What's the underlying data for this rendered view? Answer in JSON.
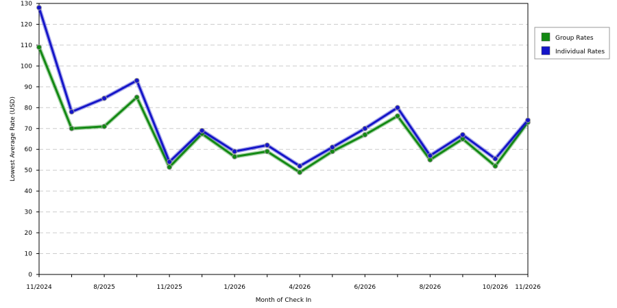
{
  "chart_data": {
    "type": "line",
    "title": "",
    "xlabel": "Month of Check In",
    "ylabel": "Lowest Average Rate (USD)",
    "ylim": [
      0,
      130
    ],
    "y_ticks": [
      0,
      10,
      20,
      30,
      40,
      50,
      60,
      70,
      80,
      90,
      100,
      110,
      120,
      130
    ],
    "x": [
      "11/2024",
      "",
      "8/2025",
      "",
      "11/2025",
      "",
      "1/2026",
      "",
      "4/2026",
      "",
      "6/2026",
      "",
      "8/2026",
      "",
      "10/2026",
      "11/2026"
    ],
    "x_tick_labels_shown": [
      "11/2024",
      "8/2025",
      "11/2025",
      "1/2026",
      "4/2026",
      "6/2026",
      "8/2026",
      "10/2026",
      "11/2026"
    ],
    "grid": true,
    "legend_position": "right",
    "series": [
      {
        "name": "Group Rates",
        "color": "#138913",
        "values": [
          109,
          70,
          71,
          85,
          51.5,
          67.5,
          56.5,
          59,
          49,
          59,
          67,
          76,
          55,
          65,
          52,
          73
        ]
      },
      {
        "name": "Individual Rates",
        "color": "#1515c8",
        "values": [
          128,
          78,
          84.5,
          93,
          54,
          69,
          59,
          62,
          52,
          61,
          70,
          80,
          57,
          67,
          55.5,
          74
        ]
      }
    ]
  }
}
